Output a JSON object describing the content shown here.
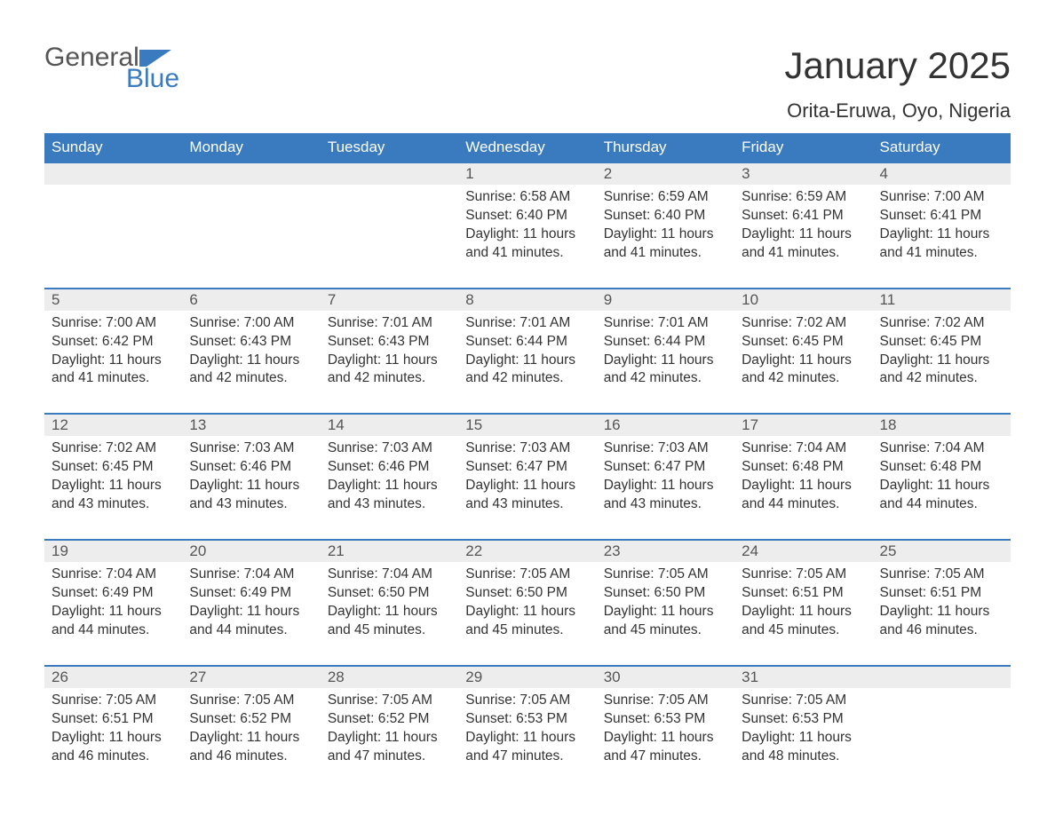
{
  "logo": {
    "word1": "General",
    "word2": "Blue"
  },
  "title": "January 2025",
  "location": "Orita-Eruwa, Oyo, Nigeria",
  "colors": {
    "header_bg": "#3a7bbf",
    "header_text": "#ffffff",
    "daynum_bg": "#ededed",
    "daynum_text": "#555555",
    "body_text": "#333333",
    "week_border": "#3a7bbf",
    "page_bg": "#ffffff",
    "logo_gray": "#555555",
    "logo_blue": "#3a7bbf"
  },
  "weekdays": [
    "Sunday",
    "Monday",
    "Tuesday",
    "Wednesday",
    "Thursday",
    "Friday",
    "Saturday"
  ],
  "weeks": [
    [
      null,
      null,
      null,
      {
        "n": "1",
        "sr": "Sunrise: 6:58 AM",
        "ss": "Sunset: 6:40 PM",
        "dl1": "Daylight: 11 hours",
        "dl2": "and 41 minutes."
      },
      {
        "n": "2",
        "sr": "Sunrise: 6:59 AM",
        "ss": "Sunset: 6:40 PM",
        "dl1": "Daylight: 11 hours",
        "dl2": "and 41 minutes."
      },
      {
        "n": "3",
        "sr": "Sunrise: 6:59 AM",
        "ss": "Sunset: 6:41 PM",
        "dl1": "Daylight: 11 hours",
        "dl2": "and 41 minutes."
      },
      {
        "n": "4",
        "sr": "Sunrise: 7:00 AM",
        "ss": "Sunset: 6:41 PM",
        "dl1": "Daylight: 11 hours",
        "dl2": "and 41 minutes."
      }
    ],
    [
      {
        "n": "5",
        "sr": "Sunrise: 7:00 AM",
        "ss": "Sunset: 6:42 PM",
        "dl1": "Daylight: 11 hours",
        "dl2": "and 41 minutes."
      },
      {
        "n": "6",
        "sr": "Sunrise: 7:00 AM",
        "ss": "Sunset: 6:43 PM",
        "dl1": "Daylight: 11 hours",
        "dl2": "and 42 minutes."
      },
      {
        "n": "7",
        "sr": "Sunrise: 7:01 AM",
        "ss": "Sunset: 6:43 PM",
        "dl1": "Daylight: 11 hours",
        "dl2": "and 42 minutes."
      },
      {
        "n": "8",
        "sr": "Sunrise: 7:01 AM",
        "ss": "Sunset: 6:44 PM",
        "dl1": "Daylight: 11 hours",
        "dl2": "and 42 minutes."
      },
      {
        "n": "9",
        "sr": "Sunrise: 7:01 AM",
        "ss": "Sunset: 6:44 PM",
        "dl1": "Daylight: 11 hours",
        "dl2": "and 42 minutes."
      },
      {
        "n": "10",
        "sr": "Sunrise: 7:02 AM",
        "ss": "Sunset: 6:45 PM",
        "dl1": "Daylight: 11 hours",
        "dl2": "and 42 minutes."
      },
      {
        "n": "11",
        "sr": "Sunrise: 7:02 AM",
        "ss": "Sunset: 6:45 PM",
        "dl1": "Daylight: 11 hours",
        "dl2": "and 42 minutes."
      }
    ],
    [
      {
        "n": "12",
        "sr": "Sunrise: 7:02 AM",
        "ss": "Sunset: 6:45 PM",
        "dl1": "Daylight: 11 hours",
        "dl2": "and 43 minutes."
      },
      {
        "n": "13",
        "sr": "Sunrise: 7:03 AM",
        "ss": "Sunset: 6:46 PM",
        "dl1": "Daylight: 11 hours",
        "dl2": "and 43 minutes."
      },
      {
        "n": "14",
        "sr": "Sunrise: 7:03 AM",
        "ss": "Sunset: 6:46 PM",
        "dl1": "Daylight: 11 hours",
        "dl2": "and 43 minutes."
      },
      {
        "n": "15",
        "sr": "Sunrise: 7:03 AM",
        "ss": "Sunset: 6:47 PM",
        "dl1": "Daylight: 11 hours",
        "dl2": "and 43 minutes."
      },
      {
        "n": "16",
        "sr": "Sunrise: 7:03 AM",
        "ss": "Sunset: 6:47 PM",
        "dl1": "Daylight: 11 hours",
        "dl2": "and 43 minutes."
      },
      {
        "n": "17",
        "sr": "Sunrise: 7:04 AM",
        "ss": "Sunset: 6:48 PM",
        "dl1": "Daylight: 11 hours",
        "dl2": "and 44 minutes."
      },
      {
        "n": "18",
        "sr": "Sunrise: 7:04 AM",
        "ss": "Sunset: 6:48 PM",
        "dl1": "Daylight: 11 hours",
        "dl2": "and 44 minutes."
      }
    ],
    [
      {
        "n": "19",
        "sr": "Sunrise: 7:04 AM",
        "ss": "Sunset: 6:49 PM",
        "dl1": "Daylight: 11 hours",
        "dl2": "and 44 minutes."
      },
      {
        "n": "20",
        "sr": "Sunrise: 7:04 AM",
        "ss": "Sunset: 6:49 PM",
        "dl1": "Daylight: 11 hours",
        "dl2": "and 44 minutes."
      },
      {
        "n": "21",
        "sr": "Sunrise: 7:04 AM",
        "ss": "Sunset: 6:50 PM",
        "dl1": "Daylight: 11 hours",
        "dl2": "and 45 minutes."
      },
      {
        "n": "22",
        "sr": "Sunrise: 7:05 AM",
        "ss": "Sunset: 6:50 PM",
        "dl1": "Daylight: 11 hours",
        "dl2": "and 45 minutes."
      },
      {
        "n": "23",
        "sr": "Sunrise: 7:05 AM",
        "ss": "Sunset: 6:50 PM",
        "dl1": "Daylight: 11 hours",
        "dl2": "and 45 minutes."
      },
      {
        "n": "24",
        "sr": "Sunrise: 7:05 AM",
        "ss": "Sunset: 6:51 PM",
        "dl1": "Daylight: 11 hours",
        "dl2": "and 45 minutes."
      },
      {
        "n": "25",
        "sr": "Sunrise: 7:05 AM",
        "ss": "Sunset: 6:51 PM",
        "dl1": "Daylight: 11 hours",
        "dl2": "and 46 minutes."
      }
    ],
    [
      {
        "n": "26",
        "sr": "Sunrise: 7:05 AM",
        "ss": "Sunset: 6:51 PM",
        "dl1": "Daylight: 11 hours",
        "dl2": "and 46 minutes."
      },
      {
        "n": "27",
        "sr": "Sunrise: 7:05 AM",
        "ss": "Sunset: 6:52 PM",
        "dl1": "Daylight: 11 hours",
        "dl2": "and 46 minutes."
      },
      {
        "n": "28",
        "sr": "Sunrise: 7:05 AM",
        "ss": "Sunset: 6:52 PM",
        "dl1": "Daylight: 11 hours",
        "dl2": "and 47 minutes."
      },
      {
        "n": "29",
        "sr": "Sunrise: 7:05 AM",
        "ss": "Sunset: 6:53 PM",
        "dl1": "Daylight: 11 hours",
        "dl2": "and 47 minutes."
      },
      {
        "n": "30",
        "sr": "Sunrise: 7:05 AM",
        "ss": "Sunset: 6:53 PM",
        "dl1": "Daylight: 11 hours",
        "dl2": "and 47 minutes."
      },
      {
        "n": "31",
        "sr": "Sunrise: 7:05 AM",
        "ss": "Sunset: 6:53 PM",
        "dl1": "Daylight: 11 hours",
        "dl2": "and 48 minutes."
      },
      null
    ]
  ]
}
